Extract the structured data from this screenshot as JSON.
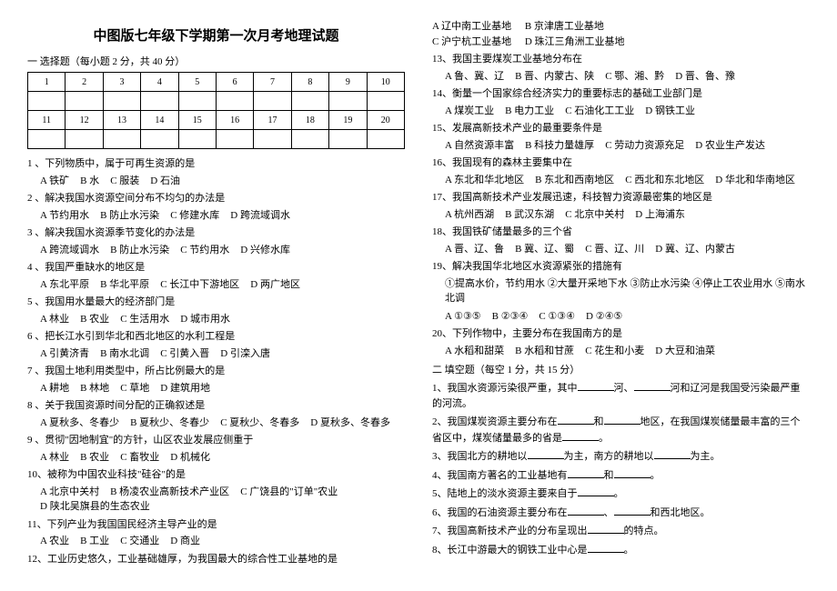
{
  "title": "中图版七年级下学期第一次月考地理试题",
  "sectionA": "一 选择题（每小题 2 分，共 40 分）",
  "grid_row1": [
    "1",
    "2",
    "3",
    "4",
    "5",
    "6",
    "7",
    "8",
    "9",
    "10"
  ],
  "grid_row2": [
    "11",
    "12",
    "13",
    "14",
    "15",
    "16",
    "17",
    "18",
    "19",
    "20"
  ],
  "left_questions": [
    {
      "n": "1 、",
      "t": "下列物质中，属于可再生资源的是",
      "opts": [
        "A 铁矿",
        "B 水",
        "C 服装",
        "D 石油"
      ]
    },
    {
      "n": "2 、",
      "t": "解决我国水资源空间分布不均匀的办法是",
      "opts": [
        "A 节约用水",
        "B 防止水污染",
        "C 修建水库",
        "D 跨流域调水"
      ]
    },
    {
      "n": "3 、",
      "t": "解决我国水资源季节变化的办法是",
      "opts": [
        "A 跨流域调水",
        "B 防止水污染",
        "C 节约用水",
        "D 兴修水库"
      ]
    },
    {
      "n": "4 、",
      "t": "我国严重缺水的地区是",
      "opts": [
        "A 东北平原",
        "B 华北平原",
        "C 长江中下游地区",
        "D 两广地区"
      ]
    },
    {
      "n": "5 、",
      "t": "我国用水量最大的经济部门是",
      "opts": [
        "A 林业",
        "B 农业",
        "C 生活用水",
        "D 城市用水"
      ]
    },
    {
      "n": "6 、",
      "t": "把长江水引到华北和西北地区的水利工程是",
      "opts": [
        "A 引黄济青",
        "B 南水北调",
        "C 引黄入晋",
        "D 引滦入唐"
      ]
    },
    {
      "n": "7 、",
      "t": "我国土地利用类型中，所占比例最大的是",
      "opts": [
        "A 耕地",
        "B 林地",
        "C 草地",
        "D 建筑用地"
      ]
    },
    {
      "n": "8 、",
      "t": "关于我国资源时间分配的正确叙述是",
      "opts": [
        "A 夏秋多、冬春少",
        "B 夏秋少、冬春少",
        "C 夏秋少、冬春多",
        "D 夏秋多、冬春多"
      ]
    },
    {
      "n": "9 、",
      "t": "贯彻\"因地制宜\"的方针，山区农业发展应侧重于",
      "opts": [
        "A 林业",
        "B 农业",
        "C 畜牧业",
        "D 机械化"
      ]
    },
    {
      "n": "10、",
      "t": "被称为中国农业科技\"硅谷\"的是",
      "opts": [
        "A 北京中关村",
        "B 杨凌农业高新技术产业区",
        "C 广饶县的\"订单\"农业",
        "D 陕北吴旗县的生态农业"
      ]
    },
    {
      "n": "11、",
      "t": "下列产业为我国国民经济主导产业的是",
      "opts": [
        "A 农业",
        "B 工业",
        "C 交通业",
        "D 商业"
      ]
    },
    {
      "n": "12、",
      "t": "工业历史悠久，工业基础雄厚，为我国最大的综合性工业基地的是",
      "opts": []
    }
  ],
  "right_questions_top": {
    "opts": [
      "A 辽中南工业基地",
      "B 京津唐工业基地",
      "C 沪宁杭工业基地",
      "D 珠江三角洲工业基地"
    ]
  },
  "right_questions": [
    {
      "n": "13、",
      "t": "我国主要煤炭工业基地分布在",
      "opts": [
        "A 鲁、冀、辽",
        "B 晋、内蒙古、陕",
        "C 鄂、湘、黔",
        "D 晋、鲁、豫"
      ]
    },
    {
      "n": "14、",
      "t": "衡量一个国家综合经济实力的重要标志的基础工业部门是",
      "opts": [
        "A 煤炭工业",
        "B 电力工业",
        "C 石油化工工业",
        "D 钢铁工业"
      ]
    },
    {
      "n": "15、",
      "t": "发展高新技术产业的最重要条件是",
      "opts": [
        "A 自然资源丰富",
        "B 科技力量雄厚",
        "C 劳动力资源充足",
        "D 农业生产发达"
      ]
    },
    {
      "n": "16、",
      "t": "我国现有的森林主要集中在",
      "opts": [
        "A 东北和华北地区",
        "B 东北和西南地区",
        "C 西北和东北地区",
        "D 华北和华南地区"
      ]
    },
    {
      "n": "17、",
      "t": "我国高新技术产业发展迅速，科技智力资源最密集的地区是",
      "opts": [
        "A 杭州西湖",
        "B 武汉东湖",
        "C 北京中关村",
        "D 上海浦东"
      ]
    },
    {
      "n": "18、",
      "t": "我国铁矿储量最多的三个省",
      "opts": [
        "A 晋、辽、鲁",
        "B 冀、辽、蜀",
        "C 晋、辽、川",
        "D 冀、辽、内蒙古"
      ]
    },
    {
      "n": "19、",
      "t": "解决我国华北地区水资源紧张的措施有",
      "pre": "①提高水价，节约用水 ②大量开采地下水 ③防止水污染 ④停止工农业用水 ⑤南水北调",
      "opts": [
        "A ①③⑤",
        "B ②③④",
        "C ①③④",
        "D ②④⑤"
      ]
    },
    {
      "n": "20、",
      "t": "下列作物中，主要分布在我国南方的是",
      "opts": [
        "A 水稻和甜菜",
        "B 水稻和甘蔗",
        "C 花生和小麦",
        "D 大豆和油菜"
      ]
    }
  ],
  "sectionB": "二 填空题（每空 1 分，共 15 分）",
  "fill": [
    "我国水资源污染很严重，其中____河、____河和辽河是我国受污染最严重的河流。",
    "我国煤炭资源主要分布在____和______地区，在我国煤炭储量最丰富的三个省区中，煤炭储量最多的省是_______。",
    "我国北方的耕地以_______为主，南方的耕地以_______为主。",
    "我国南方著名的工业基地有________和_________。",
    "陆地上的淡水资源主要来自于________。",
    "我国的石油资源主要分布在_______、_______和西北地区。",
    "我国高新技术产业的分布呈现出________________的特点。",
    "长江中游最大的钢铁工业中心是________。"
  ]
}
